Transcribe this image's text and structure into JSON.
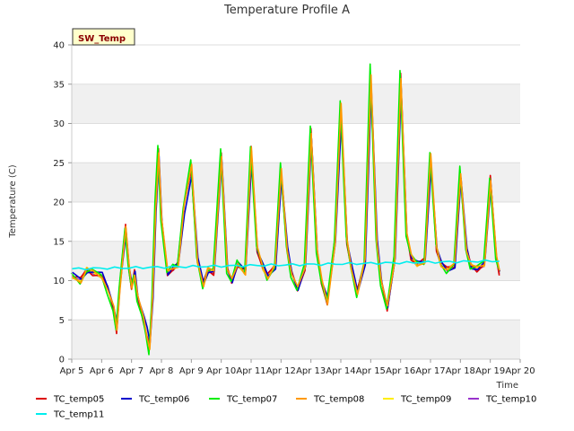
{
  "chart_data": {
    "type": "line",
    "title": "Temperature Profile A",
    "tag": "SW_Temp",
    "xlabel": "Time",
    "ylabel": "Temperature (C)",
    "xlim": [
      5,
      20
    ],
    "ylim": [
      0,
      40
    ],
    "x_ticks": [
      5,
      6,
      7,
      8,
      9,
      10,
      11,
      12,
      13,
      14,
      15,
      16,
      17,
      18,
      19,
      20
    ],
    "x_tick_labels": [
      "Apr 5",
      "Apr 6",
      "Apr 7",
      "Apr 8",
      "Apr 9",
      "Apr 10",
      "Apr 11",
      "Apr 12",
      "Apr 13",
      "Apr 14",
      "Apr 15",
      "Apr 16",
      "Apr 17",
      "Apr 18",
      "Apr 19",
      "Apr 20"
    ],
    "y_ticks": [
      0,
      5,
      10,
      15,
      20,
      25,
      30,
      35,
      40
    ],
    "y_tick_labels": [
      "0",
      "5",
      "10",
      "15",
      "20",
      "25",
      "30",
      "35",
      "40"
    ],
    "grid": true,
    "legend_position": "bottom",
    "series": [
      {
        "name": "TC_temp05",
        "color": "#dd0000"
      },
      {
        "name": "TC_temp06",
        "color": "#0000cc"
      },
      {
        "name": "TC_temp07",
        "color": "#00ee00"
      },
      {
        "name": "TC_temp08",
        "color": "#ff9900"
      },
      {
        "name": "TC_temp09",
        "color": "#ffee00"
      },
      {
        "name": "TC_temp10",
        "color": "#9933cc"
      },
      {
        "name": "TC_temp11",
        "color": "#00eeee"
      }
    ],
    "profile_x": [
      5.0,
      5.3,
      5.5,
      5.7,
      6.0,
      6.2,
      6.4,
      6.5,
      6.6,
      6.8,
      6.9,
      7.0,
      7.1,
      7.2,
      7.4,
      7.5,
      7.6,
      7.7,
      7.8,
      7.9,
      8.0,
      8.2,
      8.4,
      8.55,
      8.75,
      9.0,
      9.2,
      9.4,
      9.55,
      9.75,
      10.0,
      10.2,
      10.35,
      10.55,
      10.8,
      11.0,
      11.2,
      11.4,
      11.55,
      11.8,
      12.0,
      12.2,
      12.35,
      12.55,
      12.8,
      13.0,
      13.2,
      13.35,
      13.55,
      13.8,
      14.0,
      14.2,
      14.35,
      14.55,
      14.8,
      15.0,
      15.2,
      15.35,
      15.55,
      15.8,
      16.0,
      16.2,
      16.35,
      16.55,
      16.8,
      17.0,
      17.2,
      17.35,
      17.55,
      17.8,
      18.0,
      18.2,
      18.35,
      18.55,
      18.8,
      19.0,
      19.2,
      19.3
    ],
    "profile_y": [
      10.5,
      10.0,
      11.5,
      11.0,
      10.5,
      9.0,
      6.5,
      3.5,
      9.0,
      17.0,
      12.0,
      9.0,
      11.0,
      8.0,
      5.0,
      3.0,
      1.5,
      8.0,
      19.0,
      26.5,
      18.0,
      11.0,
      11.5,
      12.0,
      19.5,
      24.5,
      12.5,
      9.5,
      11.5,
      11.0,
      26.0,
      11.5,
      10.0,
      12.0,
      11.0,
      27.0,
      14.0,
      11.5,
      10.5,
      12.0,
      24.0,
      14.0,
      11.0,
      9.0,
      11.5,
      29.0,
      14.0,
      10.0,
      7.0,
      15.0,
      32.5,
      15.0,
      11.5,
      8.5,
      12.5,
      36.0,
      15.0,
      10.0,
      6.5,
      12.5,
      36.0,
      16.0,
      13.0,
      12.0,
      12.5,
      26.0,
      14.0,
      12.0,
      11.5,
      12.0,
      23.5,
      14.0,
      12.0,
      11.5,
      12.0,
      23.0,
      13.0,
      11.0
    ],
    "baseline_start": 11.5,
    "baseline_end": 12.5
  }
}
